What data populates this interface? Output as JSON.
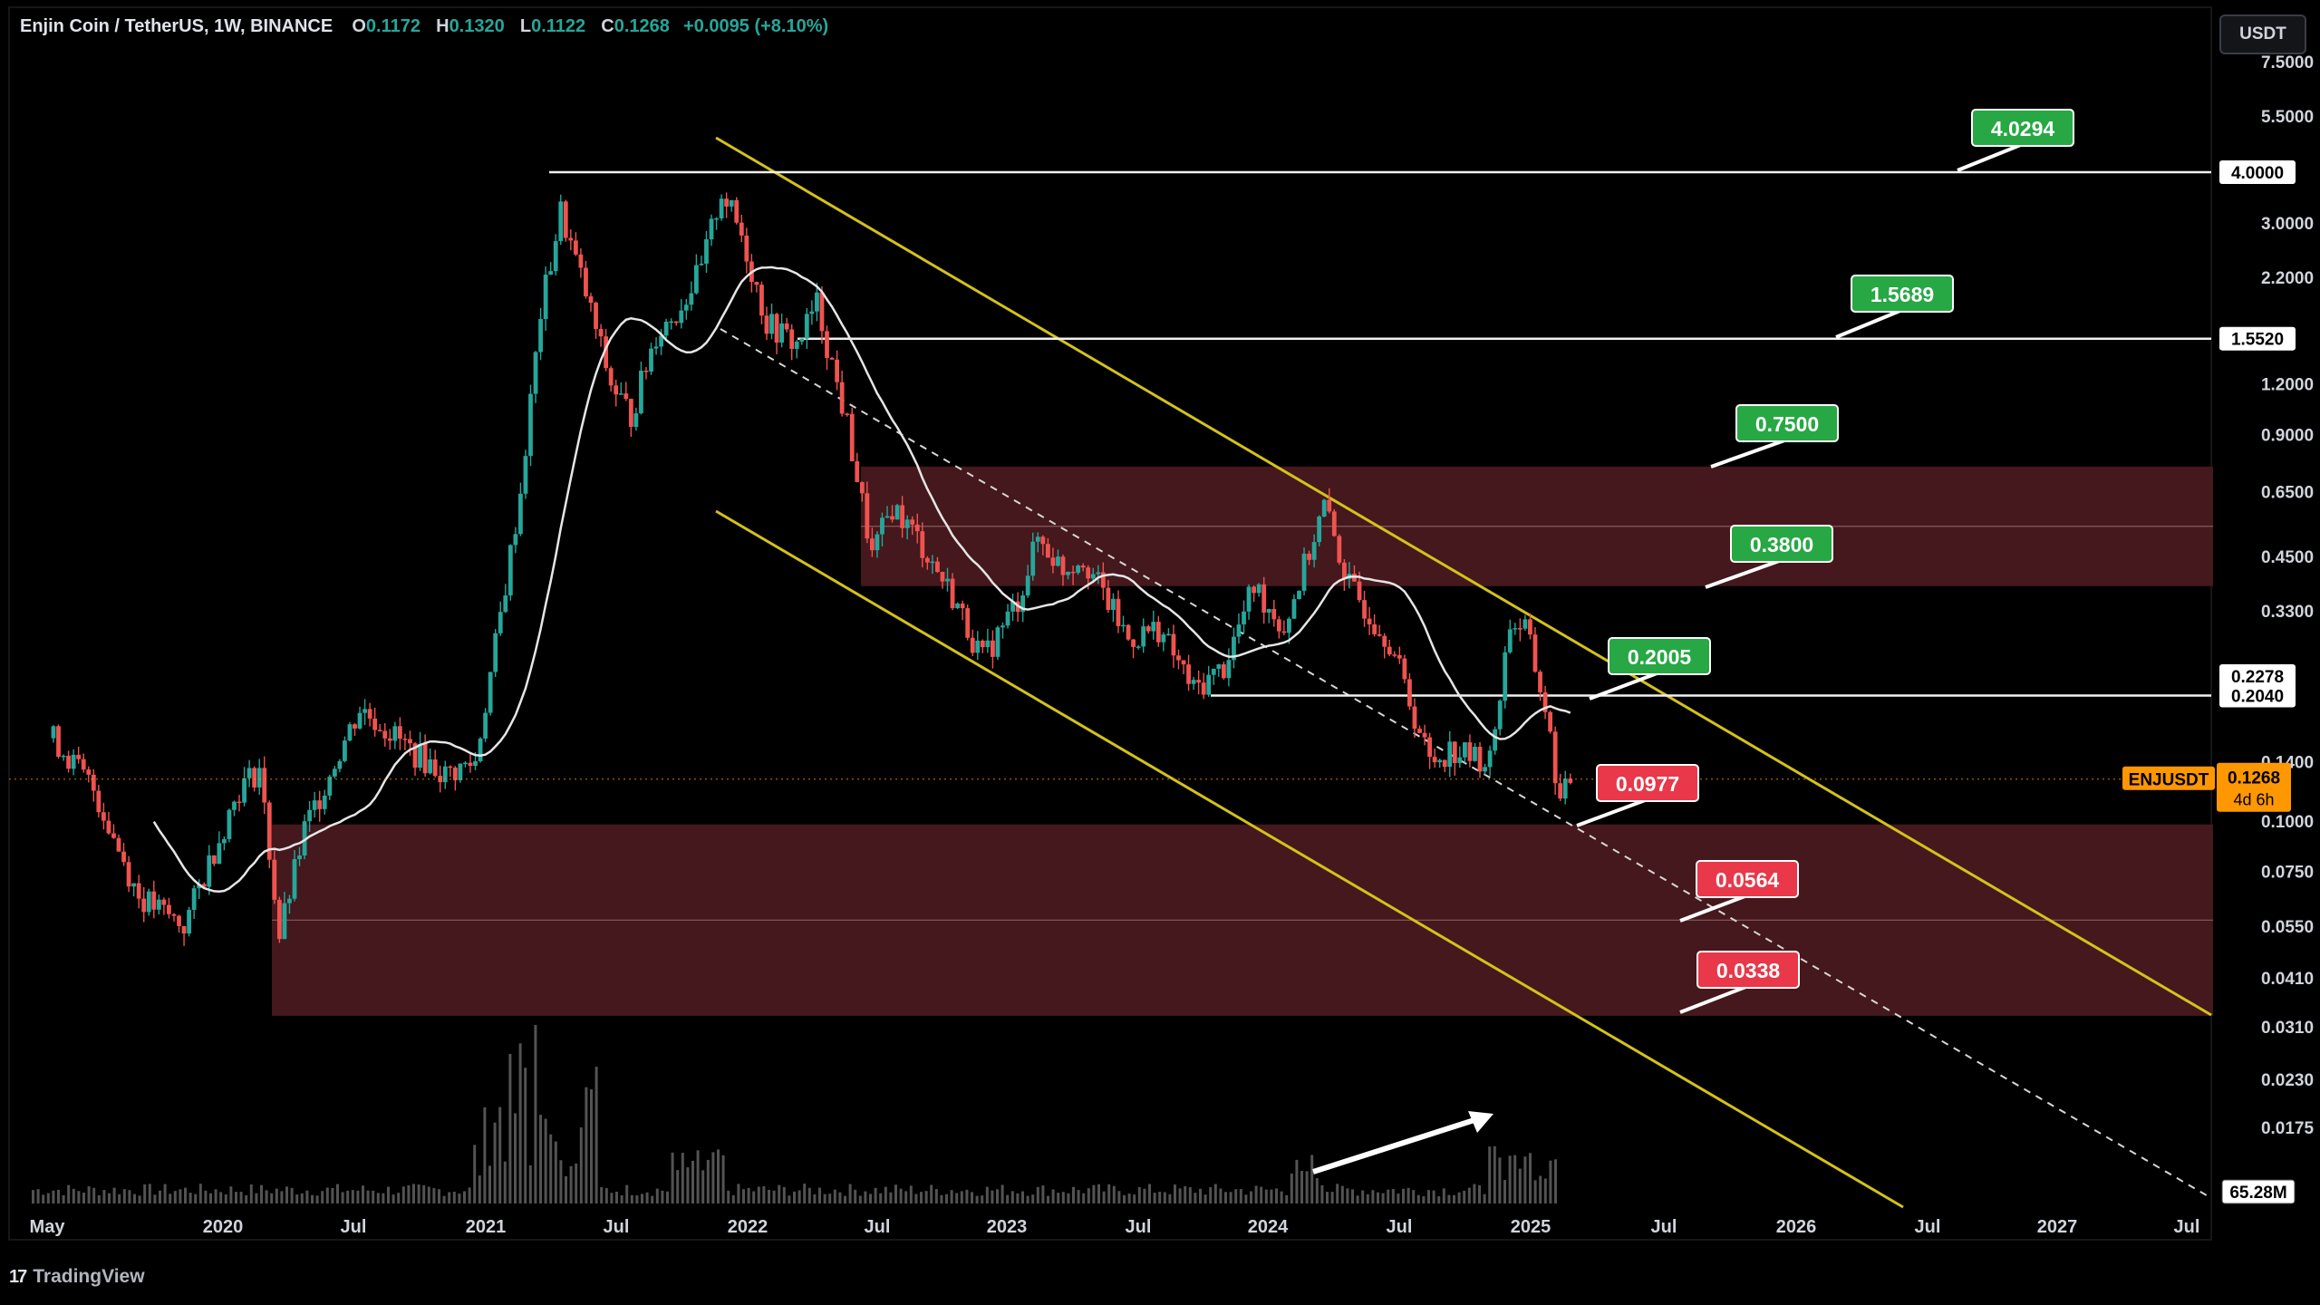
{
  "header": {
    "symbol": "Enjin Coin / TetherUS, 1W, BINANCE",
    "o_label": "O",
    "o_value": "0.1172",
    "h_label": "H",
    "h_value": "0.1320",
    "l_label": "L",
    "l_value": "0.1122",
    "c_label": "C",
    "c_value": "0.1268",
    "change": "+0.0095 (+8.10%)"
  },
  "currency_button": "USDT",
  "brand": "TradingView",
  "colors": {
    "background": "#000000",
    "bull": "#26a69a",
    "bear": "#ef5350",
    "channel": "#d4c21a",
    "zone": "#4a1a1e",
    "target_green": "#27a844",
    "target_red": "#e8384a",
    "price_tag": "#ff9800",
    "ma": "#e6e6e6"
  },
  "chart_data": {
    "type": "candlestick",
    "title": "Enjin Coin / TetherUS, 1W, BINANCE",
    "scale": "log",
    "yaxis_ticks": [
      "7.5000",
      "5.5000",
      "3.0000",
      "2.2000",
      "1.2000",
      "0.9000",
      "0.6500",
      "0.4500",
      "0.3300",
      "0.1400",
      "0.1000",
      "0.0750",
      "0.0550",
      "0.0410",
      "0.0310",
      "0.0230",
      "0.0175"
    ],
    "xaxis_ticks": [
      "May",
      "2020",
      "Jul",
      "2021",
      "Jul",
      "2022",
      "Jul",
      "2023",
      "Jul",
      "2024",
      "Jul",
      "2025",
      "Jul",
      "2026",
      "Jul",
      "2027",
      "Jul"
    ],
    "price_path": [
      [
        "2019-05-06",
        0.16
      ],
      [
        "2019-07-01",
        0.12
      ],
      [
        "2019-09-02",
        0.065
      ],
      [
        "2019-11-04",
        0.055
      ],
      [
        "2019-12-16",
        0.085
      ],
      [
        "2020-01-20",
        0.12
      ],
      [
        "2020-02-17",
        0.135
      ],
      [
        "2020-03-16",
        0.052
      ],
      [
        "2020-04-20",
        0.095
      ],
      [
        "2020-06-01",
        0.14
      ],
      [
        "2020-07-06",
        0.19
      ],
      [
        "2020-08-10",
        0.17
      ],
      [
        "2020-09-14",
        0.15
      ],
      [
        "2020-11-02",
        0.13
      ],
      [
        "2020-12-14",
        0.14
      ],
      [
        "2021-01-18",
        0.32
      ],
      [
        "2021-02-15",
        0.65
      ],
      [
        "2021-03-15",
        1.8
      ],
      [
        "2021-04-12",
        3.2
      ],
      [
        "2021-05-17",
        2.0
      ],
      [
        "2021-06-21",
        1.2
      ],
      [
        "2021-07-19",
        1.0
      ],
      [
        "2021-08-23",
        1.6
      ],
      [
        "2021-09-20",
        1.8
      ],
      [
        "2021-10-25",
        2.3
      ],
      [
        "2021-11-22",
        3.6
      ],
      [
        "2021-12-20",
        2.8
      ],
      [
        "2022-01-24",
        1.7
      ],
      [
        "2022-03-07",
        1.5
      ],
      [
        "2022-04-04",
        1.9
      ],
      [
        "2022-05-16",
        0.95
      ],
      [
        "2022-06-20",
        0.45
      ],
      [
        "2022-07-18",
        0.6
      ],
      [
        "2022-08-22",
        0.5
      ],
      [
        "2022-10-10",
        0.36
      ],
      [
        "2022-11-21",
        0.25
      ],
      [
        "2023-01-09",
        0.35
      ],
      [
        "2023-02-06",
        0.5
      ],
      [
        "2023-03-13",
        0.42
      ],
      [
        "2023-04-10",
        0.45
      ],
      [
        "2023-06-12",
        0.28
      ],
      [
        "2023-07-24",
        0.3
      ],
      [
        "2023-09-11",
        0.21
      ],
      [
        "2023-10-23",
        0.24
      ],
      [
        "2023-12-04",
        0.38
      ],
      [
        "2024-01-15",
        0.3
      ],
      [
        "2024-03-11",
        0.6
      ],
      [
        "2024-04-15",
        0.38
      ],
      [
        "2024-06-10",
        0.28
      ],
      [
        "2024-08-05",
        0.14
      ],
      [
        "2024-09-02",
        0.15
      ],
      [
        "2024-10-28",
        0.14
      ],
      [
        "2024-11-25",
        0.31
      ],
      [
        "2024-12-16",
        0.3
      ],
      [
        "2025-01-13",
        0.19
      ],
      [
        "2025-02-03",
        0.11
      ],
      [
        "2025-02-17",
        0.1268
      ]
    ],
    "horizontal_levels": [
      "4.0000",
      "1.5520",
      "0.2040"
    ],
    "targets_up": [
      "4.0294",
      "1.5689",
      "0.7500",
      "0.3800",
      "0.2005"
    ],
    "targets_down": [
      "0.0977",
      "0.0564",
      "0.0338"
    ],
    "price_axis_tags": [
      "4.0000",
      "1.5520",
      "0.2278",
      "0.2040"
    ],
    "current_price": {
      "symbol": "ENJUSDT",
      "price": "0.1268",
      "countdown": "4d 6h"
    },
    "volume_label": "65.28M",
    "supply_zones": [
      [
        0.38,
        0.75
      ],
      [
        0.033,
        0.098
      ]
    ],
    "channel": "descending"
  }
}
